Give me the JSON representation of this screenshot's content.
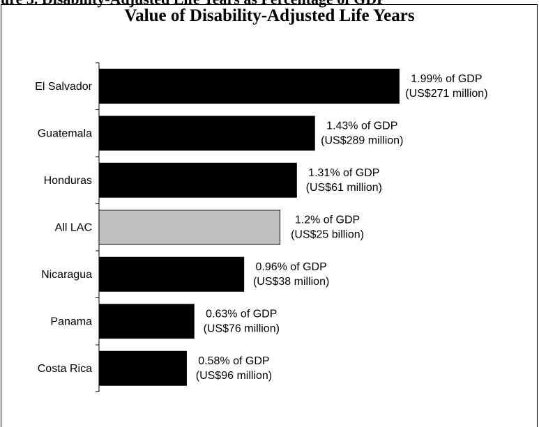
{
  "partial_heading": "ure 3. Disability-Adjusted Life Years as Percentage of GDP",
  "chart_data": {
    "type": "bar",
    "orientation": "horizontal",
    "title": "Value of Disability-Adjusted Life Years",
    "xlabel": "",
    "ylabel": "",
    "grid": false,
    "legend": "none",
    "xlim": [
      0,
      2.15
    ],
    "categories": [
      "El Salvador",
      "Guatemala",
      "Honduras",
      "All LAC",
      "Nicaragua",
      "Panama",
      "Costa Rica"
    ],
    "values": [
      1.99,
      1.43,
      1.31,
      1.2,
      0.96,
      0.63,
      0.58
    ],
    "labels": [
      [
        "1.99% of GDP",
        "(US$271 million)"
      ],
      [
        "1.43% of GDP",
        "(US$289 million)"
      ],
      [
        "1.31% of GDP",
        "(US$61 million)"
      ],
      [
        "1.2% of GDP",
        "(US$25 billion)"
      ],
      [
        "0.96% of GDP",
        "(US$38 million)"
      ],
      [
        "0.63% of GDP",
        "(US$76 million)"
      ],
      [
        "0.58% of GDP",
        "(US$96 million)"
      ]
    ],
    "colors": [
      "#000000",
      "#000000",
      "#000000",
      "#c0c0c0",
      "#000000",
      "#000000",
      "#000000"
    ]
  }
}
